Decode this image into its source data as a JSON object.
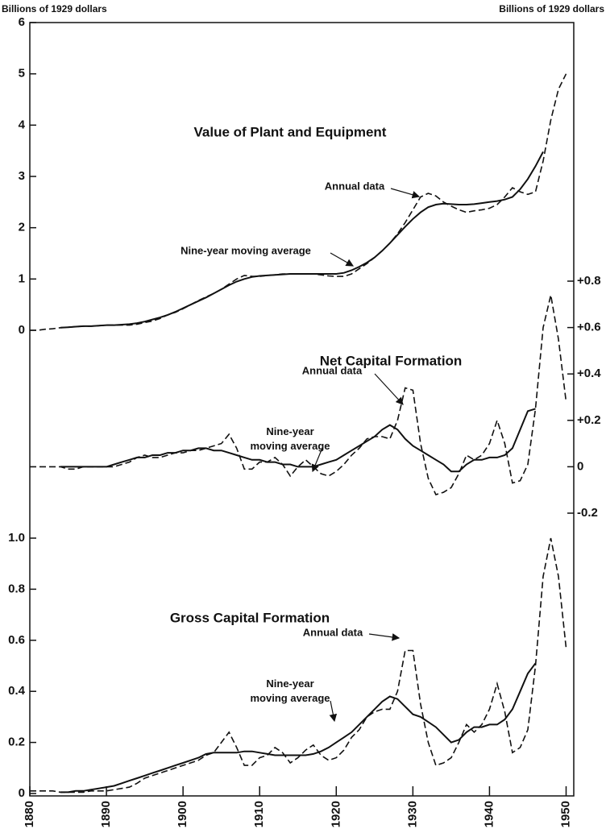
{
  "chart_data": [
    {
      "type": "line",
      "title": "Value of Plant and Equipment",
      "y_label": "Billions of 1929 dollars",
      "y_axis": "left",
      "x": [
        1880,
        1881,
        1882,
        1883,
        1884,
        1885,
        1886,
        1887,
        1888,
        1889,
        1890,
        1891,
        1892,
        1893,
        1894,
        1895,
        1896,
        1897,
        1898,
        1899,
        1900,
        1901,
        1902,
        1903,
        1904,
        1905,
        1906,
        1907,
        1908,
        1909,
        1910,
        1911,
        1912,
        1913,
        1914,
        1915,
        1916,
        1917,
        1918,
        1919,
        1920,
        1921,
        1922,
        1923,
        1924,
        1925,
        1926,
        1927,
        1928,
        1929,
        1930,
        1931,
        1932,
        1933,
        1934,
        1935,
        1936,
        1937,
        1938,
        1939,
        1940,
        1941,
        1942,
        1943,
        1944,
        1945,
        1946,
        1947,
        1948,
        1949,
        1950
      ],
      "ylim": [
        0,
        6
      ],
      "yticks": [
        0,
        1,
        2,
        3,
        4,
        5,
        6
      ],
      "series": [
        {
          "name": "Annual data",
          "color": "#111111",
          "style": "dashed",
          "values": [
            0,
            0,
            0.02,
            0.03,
            0.05,
            0.06,
            0.07,
            0.08,
            0.08,
            0.09,
            0.1,
            0.1,
            0.1,
            0.1,
            0.12,
            0.15,
            0.18,
            0.23,
            0.3,
            0.35,
            0.42,
            0.5,
            0.58,
            0.65,
            0.72,
            0.8,
            0.9,
            1.0,
            1.07,
            1.05,
            1.05,
            1.07,
            1.08,
            1.1,
            1.1,
            1.1,
            1.1,
            1.1,
            1.08,
            1.06,
            1.05,
            1.05,
            1.1,
            1.2,
            1.3,
            1.42,
            1.55,
            1.7,
            1.88,
            2.1,
            2.35,
            2.6,
            2.67,
            2.62,
            2.5,
            2.42,
            2.35,
            2.3,
            2.33,
            2.35,
            2.38,
            2.45,
            2.6,
            2.78,
            2.7,
            2.65,
            2.7,
            3.3,
            4.1,
            4.7,
            5.0
          ]
        },
        {
          "name": "Nine-year moving average",
          "color": "#111111",
          "style": "solid",
          "values": [
            null,
            null,
            null,
            null,
            0.05,
            0.06,
            0.07,
            0.08,
            0.08,
            0.09,
            0.1,
            0.1,
            0.11,
            0.12,
            0.14,
            0.17,
            0.21,
            0.25,
            0.3,
            0.36,
            0.43,
            0.5,
            0.57,
            0.64,
            0.72,
            0.8,
            0.88,
            0.95,
            1.0,
            1.04,
            1.06,
            1.07,
            1.08,
            1.09,
            1.1,
            1.1,
            1.1,
            1.1,
            1.1,
            1.1,
            1.1,
            1.12,
            1.17,
            1.24,
            1.32,
            1.42,
            1.55,
            1.7,
            1.86,
            2.02,
            2.17,
            2.3,
            2.4,
            2.45,
            2.47,
            2.46,
            2.45,
            2.45,
            2.46,
            2.48,
            2.5,
            2.52,
            2.55,
            2.6,
            2.75,
            2.95,
            3.2,
            3.48,
            null,
            null,
            null
          ]
        }
      ]
    },
    {
      "type": "line",
      "title": "Net Capital Formation",
      "y_label": "Billions of 1929 dollars",
      "y_axis": "right",
      "x": [
        1880,
        1881,
        1882,
        1883,
        1884,
        1885,
        1886,
        1887,
        1888,
        1889,
        1890,
        1891,
        1892,
        1893,
        1894,
        1895,
        1896,
        1897,
        1898,
        1899,
        1900,
        1901,
        1902,
        1903,
        1904,
        1905,
        1906,
        1907,
        1908,
        1909,
        1910,
        1911,
        1912,
        1913,
        1914,
        1915,
        1916,
        1917,
        1918,
        1919,
        1920,
        1921,
        1922,
        1923,
        1924,
        1925,
        1926,
        1927,
        1928,
        1929,
        1930,
        1931,
        1932,
        1933,
        1934,
        1935,
        1936,
        1937,
        1938,
        1939,
        1940,
        1941,
        1942,
        1943,
        1944,
        1945,
        1946,
        1947,
        1948,
        1949,
        1950
      ],
      "ylim": [
        -0.2,
        0.8
      ],
      "yticks": [
        -0.2,
        0,
        {
          "value": 0.2,
          "label": "+0.2"
        },
        {
          "value": 0.4,
          "label": "+0.4"
        },
        {
          "value": 0.6,
          "label": "+0.6"
        },
        {
          "value": 0.8,
          "label": "+0.8"
        }
      ],
      "series": [
        {
          "name": "Annual data",
          "color": "#111111",
          "style": "dashed",
          "values": [
            0,
            0,
            0,
            0,
            0,
            -0.01,
            -0.01,
            0,
            0,
            0,
            0,
            0,
            0.01,
            0.02,
            0.04,
            0.05,
            0.04,
            0.04,
            0.05,
            0.06,
            0.06,
            0.07,
            0.07,
            0.08,
            0.09,
            0.1,
            0.14,
            0.08,
            -0.01,
            -0.01,
            0.02,
            0.02,
            0.04,
            0.01,
            -0.04,
            0,
            0.03,
            0,
            -0.03,
            -0.04,
            -0.02,
            0.01,
            0.05,
            0.08,
            0.12,
            0.13,
            0.13,
            0.12,
            0.2,
            0.34,
            0.33,
            0.1,
            -0.05,
            -0.12,
            -0.11,
            -0.09,
            -0.03,
            0.05,
            0.03,
            0.05,
            0.1,
            0.2,
            0.1,
            -0.07,
            -0.06,
            0.01,
            0.25,
            0.6,
            0.74,
            0.55,
            0.28
          ]
        },
        {
          "name": "Nine-year moving average",
          "color": "#111111",
          "style": "solid",
          "values": [
            null,
            null,
            null,
            null,
            0,
            0,
            0,
            0,
            0,
            0,
            0,
            0.01,
            0.02,
            0.03,
            0.04,
            0.04,
            0.05,
            0.05,
            0.06,
            0.06,
            0.07,
            0.07,
            0.08,
            0.08,
            0.07,
            0.07,
            0.06,
            0.05,
            0.04,
            0.03,
            0.03,
            0.02,
            0.02,
            0.01,
            0.01,
            0,
            0,
            0,
            0.01,
            0.02,
            0.03,
            0.05,
            0.07,
            0.09,
            0.11,
            0.13,
            0.16,
            0.18,
            0.16,
            0.12,
            0.09,
            0.07,
            0.05,
            0.03,
            0.01,
            -0.02,
            -0.02,
            0.01,
            0.03,
            0.03,
            0.04,
            0.04,
            0.05,
            0.08,
            0.16,
            0.24,
            0.25,
            null,
            null,
            null,
            null
          ]
        }
      ]
    },
    {
      "type": "line",
      "title": "Gross Capital Formation",
      "y_axis": "left",
      "x": [
        1880,
        1881,
        1882,
        1883,
        1884,
        1885,
        1886,
        1887,
        1888,
        1889,
        1890,
        1891,
        1892,
        1893,
        1894,
        1895,
        1896,
        1897,
        1898,
        1899,
        1900,
        1901,
        1902,
        1903,
        1904,
        1905,
        1906,
        1907,
        1908,
        1909,
        1910,
        1911,
        1912,
        1913,
        1914,
        1915,
        1916,
        1917,
        1918,
        1919,
        1920,
        1921,
        1922,
        1923,
        1924,
        1925,
        1926,
        1927,
        1928,
        1929,
        1930,
        1931,
        1932,
        1933,
        1934,
        1935,
        1936,
        1937,
        1938,
        1939,
        1940,
        1941,
        1942,
        1943,
        1944,
        1945,
        1946,
        1947,
        1948,
        1949,
        1950
      ],
      "xlim": [
        1880,
        1951
      ],
      "xticks": [
        1880,
        1890,
        1900,
        1910,
        1920,
        1930,
        1940,
        1950
      ],
      "ylim": [
        0,
        1.0
      ],
      "yticks": [
        0,
        0.2,
        0.4,
        0.6,
        0.8,
        {
          "value": 1.0,
          "label": "1.0"
        }
      ],
      "series": [
        {
          "name": "Annual data",
          "color": "#111111",
          "style": "dashed",
          "values": [
            0.01,
            0.01,
            0.01,
            0.01,
            0.005,
            0.005,
            0.005,
            0.005,
            0.01,
            0.01,
            0.01,
            0.015,
            0.02,
            0.025,
            0.04,
            0.06,
            0.07,
            0.08,
            0.09,
            0.1,
            0.11,
            0.12,
            0.13,
            0.15,
            0.16,
            0.2,
            0.24,
            0.18,
            0.11,
            0.11,
            0.14,
            0.15,
            0.18,
            0.16,
            0.12,
            0.14,
            0.17,
            0.19,
            0.15,
            0.13,
            0.14,
            0.17,
            0.22,
            0.25,
            0.3,
            0.32,
            0.33,
            0.33,
            0.4,
            0.56,
            0.56,
            0.35,
            0.2,
            0.11,
            0.12,
            0.14,
            0.2,
            0.27,
            0.24,
            0.27,
            0.33,
            0.43,
            0.32,
            0.16,
            0.18,
            0.25,
            0.5,
            0.85,
            1.0,
            0.85,
            0.57
          ]
        },
        {
          "name": "Nine-year moving average",
          "color": "#111111",
          "style": "solid",
          "values": [
            null,
            null,
            null,
            null,
            0.005,
            0.005,
            0.01,
            0.01,
            0.015,
            0.02,
            0.025,
            0.03,
            0.04,
            0.05,
            0.06,
            0.07,
            0.08,
            0.09,
            0.1,
            0.11,
            0.12,
            0.13,
            0.14,
            0.155,
            0.16,
            0.16,
            0.16,
            0.16,
            0.165,
            0.165,
            0.16,
            0.155,
            0.15,
            0.15,
            0.15,
            0.15,
            0.15,
            0.155,
            0.165,
            0.18,
            0.2,
            0.22,
            0.24,
            0.27,
            0.3,
            0.33,
            0.36,
            0.38,
            0.37,
            0.34,
            0.31,
            0.3,
            0.28,
            0.26,
            0.23,
            0.2,
            0.21,
            0.24,
            0.26,
            0.26,
            0.27,
            0.27,
            0.29,
            0.33,
            0.4,
            0.47,
            0.51,
            null,
            null,
            null,
            null
          ]
        }
      ]
    }
  ]
}
